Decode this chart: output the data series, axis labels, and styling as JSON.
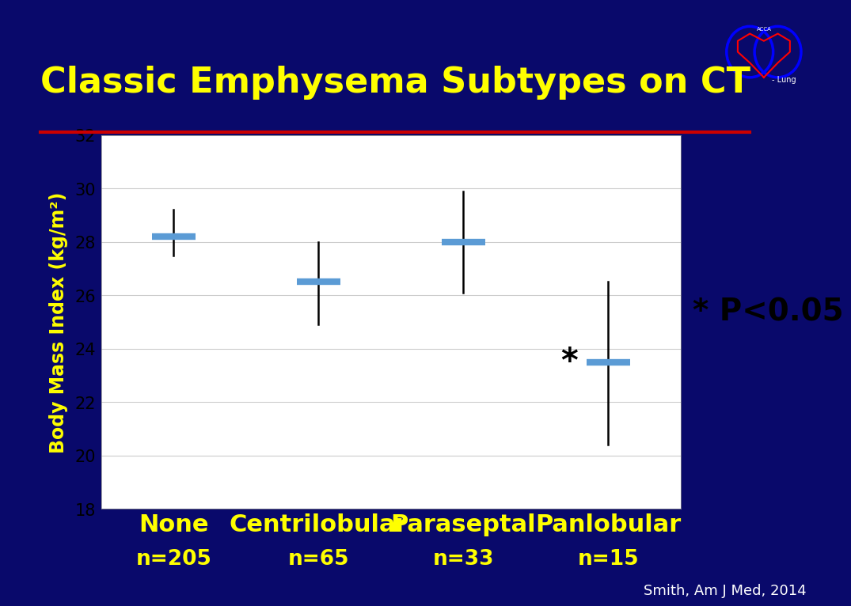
{
  "title": "Classic Emphysema Subtypes on CT",
  "ylabel": "Body Mass Index (kg/m²)",
  "background_color": "#09096b",
  "plot_bg_color": "#ffffff",
  "title_color": "#ffff00",
  "ylabel_color": "#ffff00",
  "xlabel_color": "#ffff00",
  "tick_label_color": "#000000",
  "grid_color": "#cccccc",
  "separator_color": "#cc0000",
  "pvalue_text": "* P<0.05",
  "pvalue_color": "#000000",
  "citation": "Smith, Am J Med, 2014",
  "citation_color": "#ffffff",
  "categories": [
    "None",
    "Centrilobular",
    "Paraseptal",
    "Panlobular"
  ],
  "n_labels": [
    "n=205",
    "n=65",
    "n=33",
    "n=15"
  ],
  "means": [
    28.2,
    26.5,
    28.0,
    23.5
  ],
  "ci_low": [
    27.5,
    24.9,
    26.1,
    20.4
  ],
  "ci_high": [
    29.2,
    28.0,
    29.9,
    26.5
  ],
  "marker_color": "#5b9bd5",
  "errorbar_color": "#000000",
  "ylim": [
    18,
    32
  ],
  "yticks": [
    18,
    20,
    22,
    24,
    26,
    28,
    30,
    32
  ],
  "significant": [
    false,
    false,
    false,
    true
  ],
  "asterisk_color": "#000000",
  "title_fontsize": 32,
  "ylabel_fontsize": 17,
  "tick_fontsize": 15,
  "cat_fontsize": 22,
  "n_fontsize": 19,
  "pvalue_fontsize": 28,
  "citation_fontsize": 13,
  "top_bar_color": "#000000",
  "bottom_bar_color": "#000022"
}
